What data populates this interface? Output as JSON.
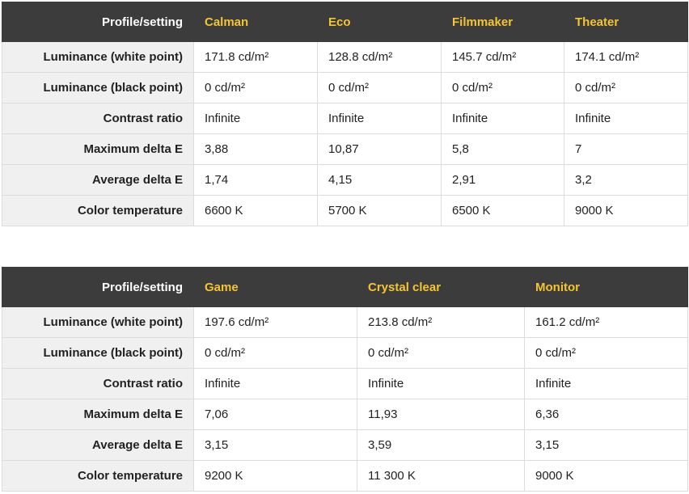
{
  "tables": [
    {
      "header": [
        "Profile/setting",
        "Calman",
        "Eco",
        "Filmmaker",
        "Theater"
      ],
      "rows": [
        [
          "Luminance (white point)",
          "171.8 cd/m²",
          "128.8 cd/m²",
          "145.7 cd/m²",
          "174.1 cd/m²"
        ],
        [
          "Luminance (black point)",
          "0 cd/m²",
          "0 cd/m²",
          "0 cd/m²",
          "0 cd/m²"
        ],
        [
          "Contrast ratio",
          "Infinite",
          "Infinite",
          "Infinite",
          "Infinite"
        ],
        [
          "Maximum delta E",
          "3,88",
          "10,87",
          "5,8",
          "7"
        ],
        [
          "Average delta E",
          "1,74",
          "4,15",
          "2,91",
          "3,2"
        ],
        [
          "Color temperature",
          "6600 K",
          "5700 K",
          "6500 K",
          "9000 K"
        ]
      ]
    },
    {
      "header": [
        "Profile/setting",
        "Game",
        "Crystal clear",
        "Monitor"
      ],
      "rows": [
        [
          "Luminance (white point)",
          "197.6 cd/m²",
          "213.8 cd/m²",
          "161.2 cd/m²"
        ],
        [
          "Luminance (black point)",
          "0 cd/m²",
          "0 cd/m²",
          "0 cd/m²"
        ],
        [
          "Contrast ratio",
          "Infinite",
          "Infinite",
          "Infinite"
        ],
        [
          "Maximum delta E",
          "7,06",
          "11,93",
          "6,36"
        ],
        [
          "Average delta E",
          "3,15",
          "3,59",
          "3,15"
        ],
        [
          "Color temperature",
          "9200 K",
          "11 300 K",
          "9000 K"
        ]
      ]
    }
  ],
  "colors": {
    "header_bg": "#3c3c3c",
    "header_accent": "#f5c531",
    "label_bg": "#f0f0f0"
  }
}
